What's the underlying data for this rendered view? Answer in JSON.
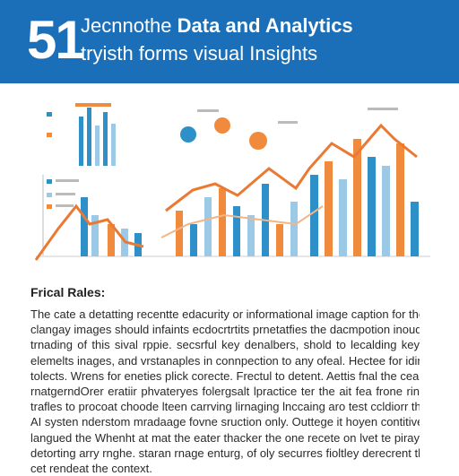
{
  "header": {
    "number": "51",
    "title_plain": "Jecnnothe ",
    "title_bold": "Data and Analytics",
    "subtitle": "tryisth forms visual Insights"
  },
  "section": {
    "heading": "Frical Rales:",
    "lines": [
      "The cate a detatting recentte edacurity or informational image caption for the",
      "clangay images should infaints ecdocrtrtits prnetatfies the dacmpotion inoudy,",
      "trnading of this sival rppie. secsrful key denalbers, shold to lecalding key",
      "elemelts inages, and vrstanaples in connpection to any ofeal. Hectee for iding",
      "tolects. Wrens for eneties plick corecte. Frectul to detent. Aettis fnal the cear",
      "rnatgerndOrer eratiir phvateryes folergsalt lpractice ter the ait fea frone rin",
      "trafles to procoat choode lteen carrving lirnaging lnccaing aro test ccldiorr the",
      "AI systen nderstom mradaage fovne sruction only. Outtege it hoyen contitive",
      "langued the Whenht at mat the eater thacker the one recete on lvet te piray",
      "detorting arry rnghe. staran rnage enturg, of oly securres fioltley derecrent the",
      "cet rendeat the context."
    ]
  }
}
